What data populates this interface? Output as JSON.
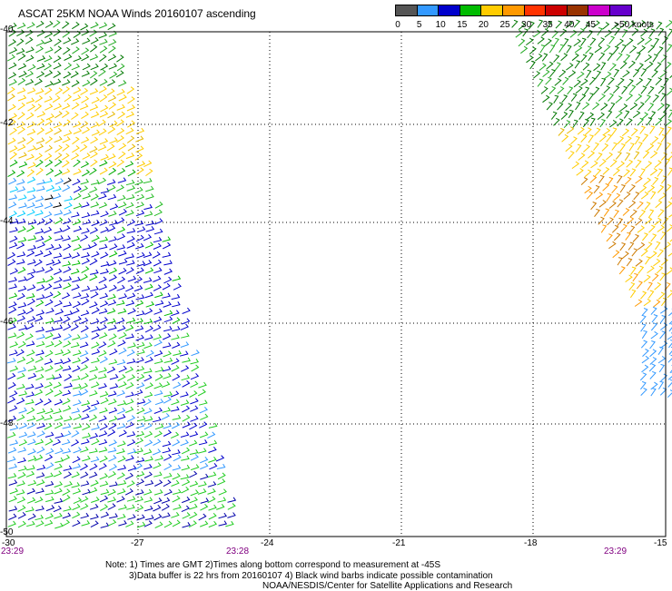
{
  "title": "ASCAT 25KM NOAA Winds 20160107 ascending",
  "legend": {
    "colors": [
      "#555555",
      "#3399ff",
      "#0000cc",
      "#00bb00",
      "#ffcc00",
      "#ff9900",
      "#ff3300",
      "#cc0000",
      "#993300",
      "#cc00cc",
      "#6600cc"
    ],
    "labels": [
      "0",
      "5",
      "10",
      "15",
      "20",
      "25",
      "30",
      "35",
      "40",
      "45",
      ">50 knots"
    ]
  },
  "lat_labels": [
    "-40",
    "-42",
    "-44",
    "-46",
    "-48",
    "-50"
  ],
  "lon_labels": [
    "-30",
    "-27",
    "-24",
    "-21",
    "-18",
    "-15"
  ],
  "time_labels": [
    "23:29",
    "23:28",
    "23:29"
  ],
  "notes": {
    "line1": "Note: 1) Times are GMT 2)Times along bottom correspond to measurement at -45S",
    "line2": "3)Data buffer is 22 hrs from 20160107 4) Black wind barbs indicate possible contamination",
    "line3": "NOAA/NESDIS/Center for Satellite Applications and Research"
  }
}
